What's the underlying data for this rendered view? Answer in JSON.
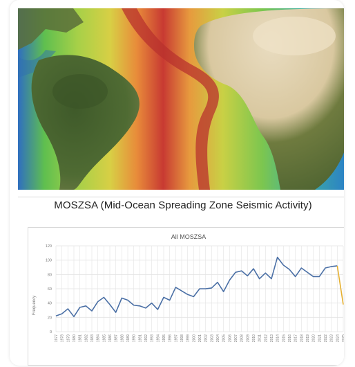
{
  "document": {
    "title": "MOSZSA (Mid-Ocean Spreading Zone Seismic Activity)"
  },
  "colors": {
    "series_main": "#4a6fa5",
    "series_last": "#e6b030",
    "grid": "#e3e3e3",
    "axis_text": "#777777"
  },
  "chart_data": {
    "type": "line",
    "title": "All MOSZSA",
    "ylabel": "Frequency",
    "xlabel": "",
    "ylim": [
      0,
      120
    ],
    "yticks": [
      0,
      20,
      40,
      60,
      80,
      100,
      120
    ],
    "grid": true,
    "x": [
      "1977",
      "1978",
      "1979",
      "1980",
      "1981",
      "1982",
      "1983",
      "1984",
      "1985",
      "1986",
      "1987",
      "1988",
      "1989",
      "1990",
      "1991",
      "1992",
      "1993",
      "1994",
      "1995",
      "1996",
      "1997",
      "1998",
      "1999",
      "2000",
      "2001",
      "2002",
      "2003",
      "2004",
      "2005",
      "2006",
      "2007",
      "2008",
      "2009",
      "2010",
      "2011",
      "2012",
      "2013",
      "2014",
      "2015",
      "2016",
      "2017",
      "2018",
      "2019",
      "2020",
      "2021",
      "2022",
      "2023",
      "2024",
      "2025"
    ],
    "series": [
      {
        "values": [
          22,
          25,
          32,
          21,
          34,
          36,
          29,
          42,
          48,
          38,
          27,
          47,
          44,
          37,
          36,
          33,
          40,
          31,
          48,
          44,
          62,
          57,
          52,
          49,
          60,
          60,
          61,
          69,
          56,
          72,
          83,
          85,
          78,
          88,
          74,
          82,
          74,
          104,
          93,
          87,
          77,
          89,
          83,
          77,
          77,
          89,
          91,
          92,
          38
        ]
      }
    ]
  }
}
